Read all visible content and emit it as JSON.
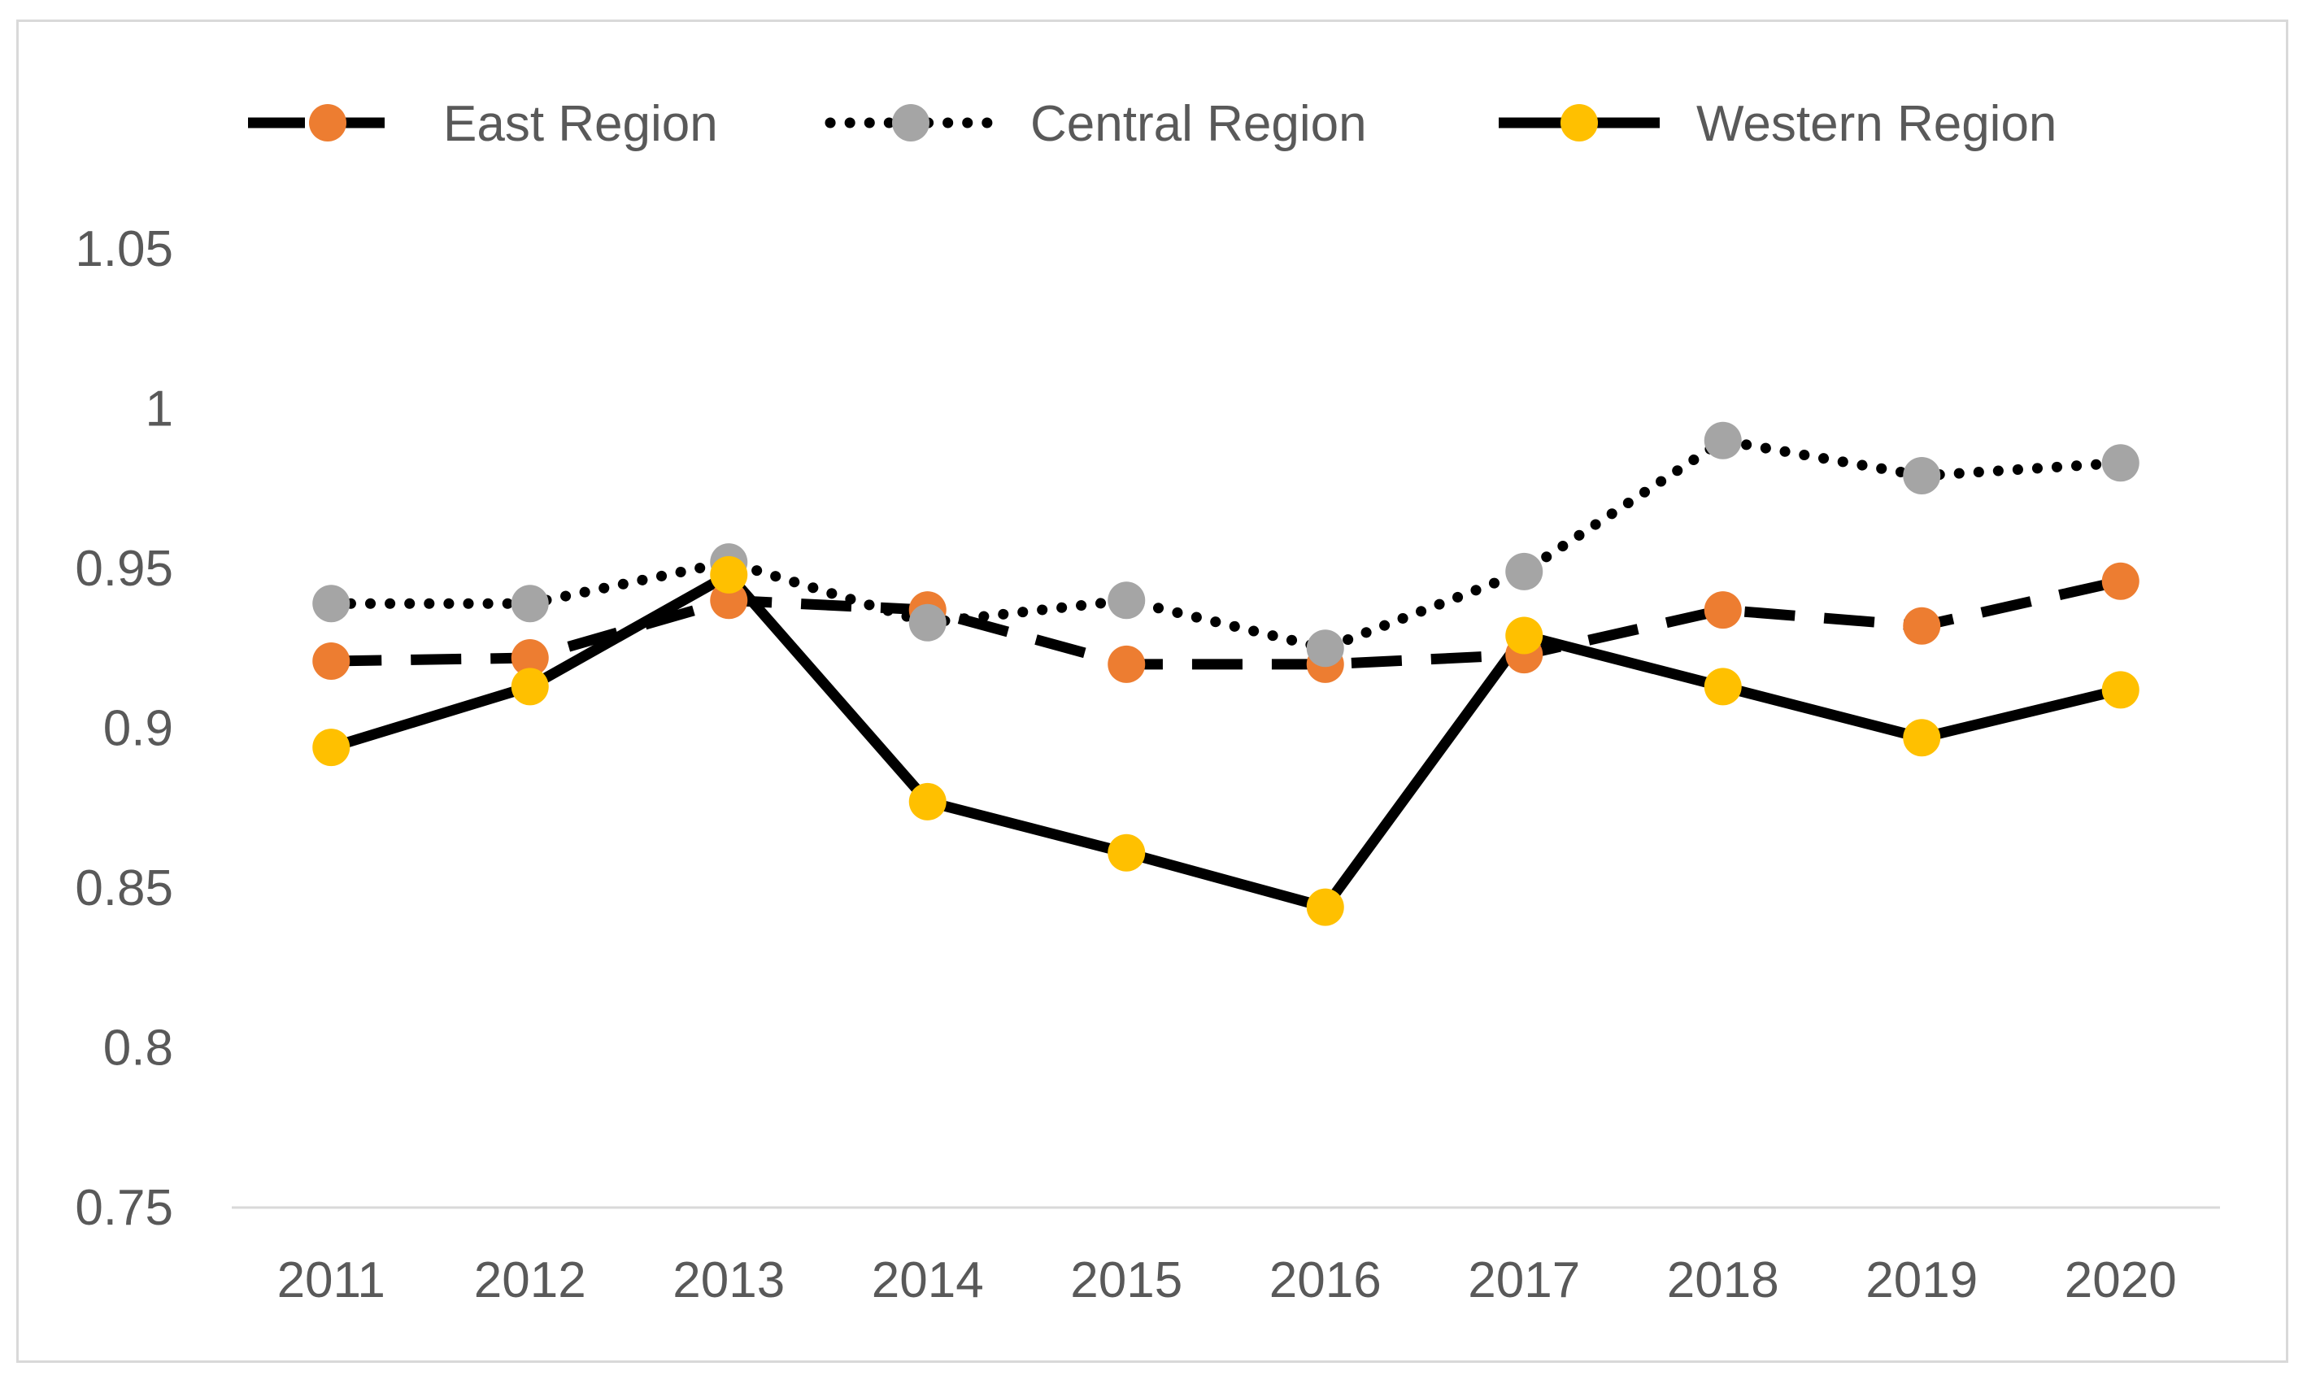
{
  "chart_data": {
    "type": "line",
    "title": "",
    "xlabel": "",
    "ylabel": "",
    "categories": [
      "2011",
      "2012",
      "2013",
      "2014",
      "2015",
      "2016",
      "2017",
      "2018",
      "2019",
      "2020"
    ],
    "ylim": [
      0.75,
      1.05
    ],
    "yticks": [
      0.75,
      0.8,
      0.85,
      0.9,
      0.95,
      1,
      1.05
    ],
    "ytick_labels": [
      "0.75",
      "0.8",
      "0.85",
      "0.9",
      "0.95",
      "1",
      "1.05"
    ],
    "grid": false,
    "legend_position": "top",
    "series": [
      {
        "name": "East Region",
        "line_style": "dashed",
        "line_color": "#000000",
        "marker_color": "#ED7D31",
        "values": [
          0.921,
          0.922,
          0.94,
          0.937,
          0.92,
          0.92,
          0.923,
          0.937,
          0.932,
          0.946
        ]
      },
      {
        "name": "Central Region",
        "line_style": "dotted",
        "line_color": "#000000",
        "marker_color": "#A5A5A5",
        "values": [
          0.939,
          0.939,
          0.952,
          0.933,
          0.94,
          0.925,
          0.949,
          0.99,
          0.979,
          0.983
        ]
      },
      {
        "name": "Western Region",
        "line_style": "solid",
        "line_color": "#000000",
        "marker_color": "#FFC000",
        "values": [
          0.894,
          0.913,
          0.948,
          0.877,
          0.861,
          0.844,
          0.929,
          0.913,
          0.897,
          0.912
        ]
      }
    ]
  }
}
